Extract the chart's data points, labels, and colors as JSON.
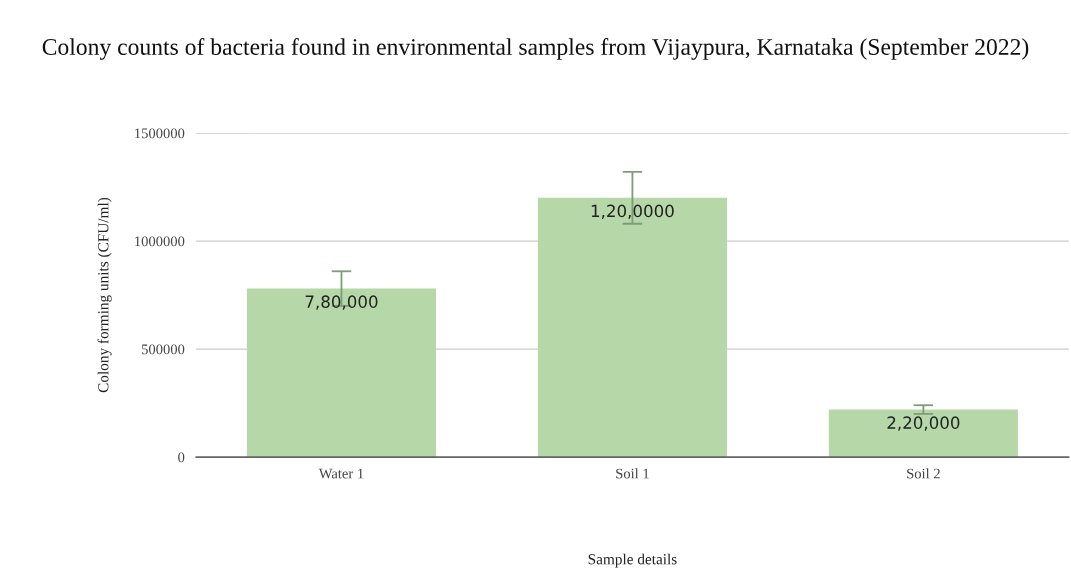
{
  "chart_data": {
    "type": "bar",
    "title": "Colony counts of bacteria found in environmental samples from Vijaypura, Karnataka (September 2022)",
    "xlabel": "Sample details",
    "ylabel": "Colony forming units (CFU/ml)",
    "categories": [
      "Water 1",
      "Soil 1",
      "Soil 2"
    ],
    "values": [
      780000,
      1200000,
      220000
    ],
    "errors": [
      80000,
      120000,
      20000
    ],
    "value_labels": [
      "7,80,000",
      "1,20,0000",
      "2,20,000"
    ],
    "color": "#b6d7a8",
    "ylim": [
      0,
      1500000
    ],
    "yticks": [
      0,
      500000,
      1000000,
      1500000
    ],
    "grid": "y",
    "legend": false
  }
}
